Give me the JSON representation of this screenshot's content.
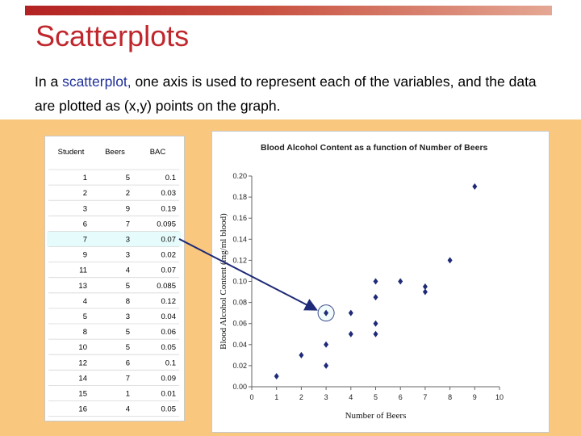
{
  "slide": {
    "title": "Scatterplots",
    "intro_before": "In a ",
    "intro_highlight": "scatterplot,",
    "intro_after": " one axis is used to represent each of the variables, and the data are plotted as (x,y) points on the graph."
  },
  "table": {
    "headers": [
      "Student",
      "Beers",
      "BAC"
    ],
    "rows": [
      [
        "1",
        "5",
        "0.1"
      ],
      [
        "2",
        "2",
        "0.03"
      ],
      [
        "3",
        "9",
        "0.19"
      ],
      [
        "6",
        "7",
        "0.095"
      ],
      [
        "7",
        "3",
        "0.07"
      ],
      [
        "9",
        "3",
        "0.02"
      ],
      [
        "11",
        "4",
        "0.07"
      ],
      [
        "13",
        "5",
        "0.085"
      ],
      [
        "4",
        "8",
        "0.12"
      ],
      [
        "5",
        "3",
        "0.04"
      ],
      [
        "8",
        "5",
        "0.06"
      ],
      [
        "10",
        "5",
        "0.05"
      ],
      [
        "12",
        "6",
        "0.1"
      ],
      [
        "14",
        "7",
        "0.09"
      ],
      [
        "15",
        "1",
        "0.01"
      ],
      [
        "16",
        "4",
        "0.05"
      ]
    ],
    "highlighted_row_index": 4,
    "highlight_color": "#e6fbfb"
  },
  "chart_data": {
    "type": "scatter",
    "title": "Blood Alcohol Content as a function of Number of Beers",
    "xlabel": "Number of Beers",
    "ylabel": "Blood Alcohol Content (mg/ml blood)",
    "xlim": [
      0,
      10
    ],
    "ylim": [
      0,
      0.2
    ],
    "x_ticks": [
      "0",
      "1",
      "2",
      "3",
      "4",
      "5",
      "6",
      "7",
      "8",
      "9",
      "10"
    ],
    "y_ticks": [
      "0.00",
      "0.02",
      "0.04",
      "0.06",
      "0.08",
      "0.10",
      "0.12",
      "0.14",
      "0.16",
      "0.18",
      "0.20"
    ],
    "grid": false,
    "marker_color": "#1f2a78",
    "points": [
      {
        "x": 5,
        "y": 0.1
      },
      {
        "x": 2,
        "y": 0.03
      },
      {
        "x": 9,
        "y": 0.19
      },
      {
        "x": 7,
        "y": 0.095
      },
      {
        "x": 3,
        "y": 0.07
      },
      {
        "x": 3,
        "y": 0.02
      },
      {
        "x": 4,
        "y": 0.07
      },
      {
        "x": 5,
        "y": 0.085
      },
      {
        "x": 8,
        "y": 0.12
      },
      {
        "x": 3,
        "y": 0.04
      },
      {
        "x": 5,
        "y": 0.06
      },
      {
        "x": 5,
        "y": 0.05
      },
      {
        "x": 6,
        "y": 0.1
      },
      {
        "x": 7,
        "y": 0.09
      },
      {
        "x": 1,
        "y": 0.01
      },
      {
        "x": 4,
        "y": 0.05
      }
    ],
    "highlighted_point_index": 4
  },
  "colors": {
    "title": "#c0272d",
    "highlight_text": "#1e2f9a",
    "band": "#f9c77d",
    "arrow": "#1f2a78"
  }
}
